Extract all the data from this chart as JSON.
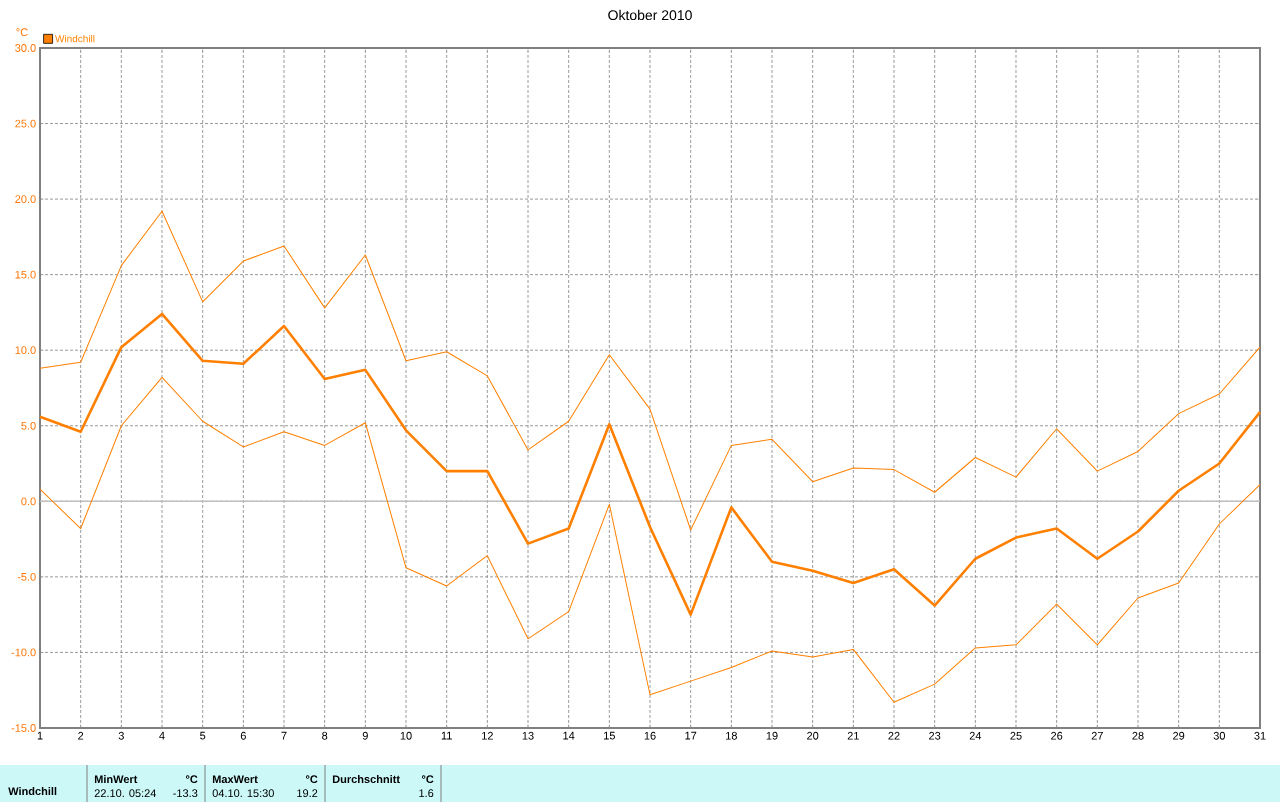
{
  "chart_data": {
    "type": "line",
    "title": "Oktober 2010",
    "ylabel": "°C",
    "x": [
      1,
      2,
      3,
      4,
      5,
      6,
      7,
      8,
      9,
      10,
      11,
      12,
      13,
      14,
      15,
      16,
      17,
      18,
      19,
      20,
      21,
      22,
      23,
      24,
      25,
      26,
      27,
      28,
      29,
      30,
      31
    ],
    "series": [
      {
        "color": "#ff8000",
        "values": [
          8.8,
          9.2,
          15.6,
          19.2,
          13.2,
          15.9,
          16.9,
          12.8,
          16.3,
          9.3,
          9.9,
          8.3,
          3.4,
          5.3,
          9.7,
          6.1,
          -1.9,
          3.7,
          4.1,
          1.3,
          2.2,
          2.1,
          0.6,
          2.9,
          1.6,
          4.8,
          2.0,
          3.3,
          5.8,
          7.1,
          10.2
        ]
      },
      {
        "name": "Windchill",
        "color": "#ff8000",
        "values": [
          5.6,
          4.6,
          10.2,
          12.4,
          9.3,
          9.1,
          11.6,
          8.1,
          8.7,
          4.7,
          2.0,
          2.0,
          -2.8,
          -1.8,
          5.1,
          -1.7,
          -7.5,
          -0.4,
          -4.0,
          -4.6,
          -5.4,
          -4.5,
          -6.9,
          -3.8,
          -2.4,
          -1.8,
          -3.8,
          -2.0,
          0.7,
          2.5,
          5.9
        ]
      },
      {
        "color": "#ff8000",
        "values": [
          0.8,
          -1.8,
          5.0,
          8.2,
          5.3,
          3.6,
          4.6,
          3.7,
          5.2,
          -4.4,
          -5.6,
          -3.6,
          -9.1,
          -7.3,
          -0.2,
          -12.8,
          -11.9,
          -11.0,
          -9.9,
          -10.3,
          -9.8,
          -13.3,
          -12.1,
          -9.7,
          -9.5,
          -6.8,
          -9.5,
          -6.4,
          -5.4,
          -1.5,
          1.1
        ]
      }
    ],
    "xlim": [
      1,
      31
    ],
    "xticks": [
      1,
      2,
      3,
      4,
      5,
      6,
      7,
      8,
      9,
      10,
      11,
      12,
      13,
      14,
      15,
      16,
      17,
      18,
      19,
      20,
      21,
      22,
      23,
      24,
      25,
      26,
      27,
      28,
      29,
      30,
      31
    ],
    "ylim": [
      -15,
      30
    ],
    "yticks": [
      {
        "value": -15,
        "label": "-15.0"
      },
      {
        "value": -10,
        "label": "-10.0"
      },
      {
        "value": -5,
        "label": "-5.0"
      },
      {
        "value": 0,
        "label": "0.0"
      },
      {
        "value": 5,
        "label": "5.0"
      },
      {
        "value": 10,
        "label": "10.0"
      },
      {
        "value": 15,
        "label": "15.0"
      },
      {
        "value": 20,
        "label": "20.0"
      },
      {
        "value": 25,
        "label": "25.0"
      },
      {
        "value": 30,
        "label": "30.0"
      }
    ],
    "ref_lines": [
      {
        "axis": "y",
        "value": 0,
        "color": "#c0c0c0"
      }
    ],
    "grid": true,
    "legend": "top left",
    "marker": "none",
    "line_style": "solid",
    "annotations": [
      "Windchill",
      "MinWert",
      "°C",
      "22.10.  05:24",
      "-13.3",
      "MaxWert",
      "°C",
      "04.10.  15:30",
      "19.2",
      "Durchschnitt",
      "°C",
      "1.6"
    ]
  }
}
